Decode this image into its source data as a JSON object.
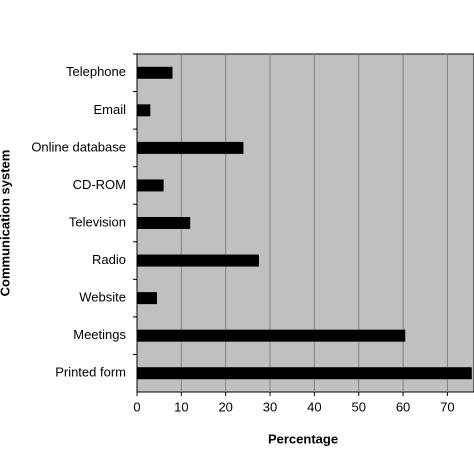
{
  "chart_data": {
    "type": "barh",
    "categories": [
      "Telephone",
      "Email",
      "Online database",
      "CD-ROM",
      "Television",
      "Radio",
      "Website",
      "Meetings",
      "Printed form"
    ],
    "values": [
      8,
      3,
      24,
      6,
      12,
      27.5,
      4.5,
      60.5,
      75.5
    ],
    "color": "#000000",
    "x_label": "Percentage",
    "y_label": "Communication system",
    "xlim": [
      0,
      76
    ],
    "xticks": [
      0,
      10,
      20,
      30,
      40,
      50,
      60,
      70
    ],
    "grid": true,
    "plot_background": "#c0c0c0"
  }
}
